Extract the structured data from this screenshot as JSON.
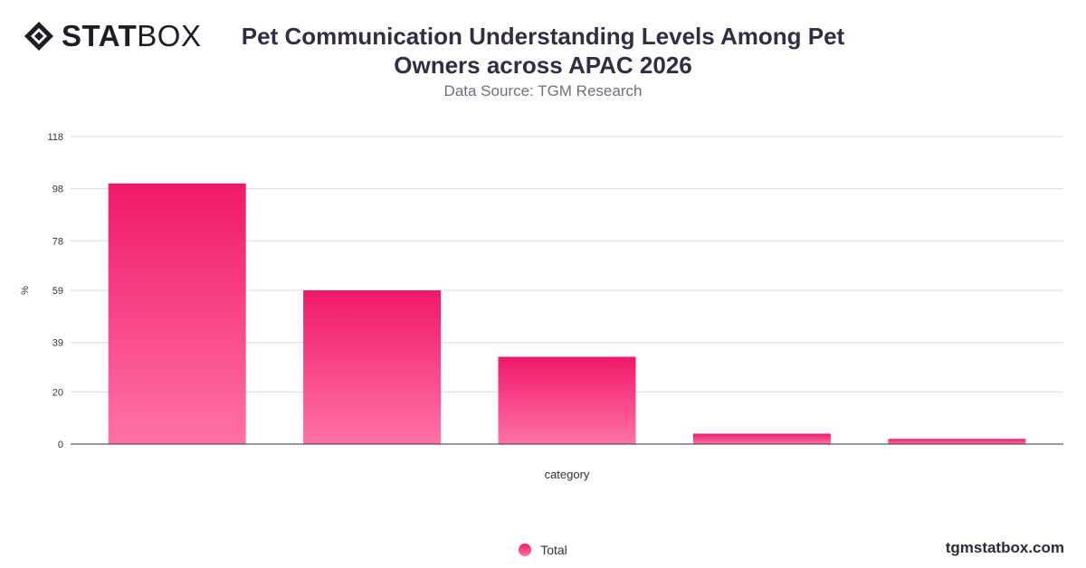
{
  "brand": {
    "logo_bold": "STAT",
    "logo_light": "BOX"
  },
  "header": {
    "title": "Pet Communication Understanding Levels Among Pet Owners across APAC 2026",
    "subtitle": "Data Source: TGM Research"
  },
  "footer": {
    "site": "tgmstatbox.com"
  },
  "legend": {
    "label": "Total"
  },
  "colors": {
    "bar_top": "#f0186a",
    "bar_bottom": "#ff72a6",
    "grid": "#dcdce0",
    "axis": "#333333"
  },
  "chart_data": {
    "type": "bar",
    "categories": [
      "",
      "",
      "",
      "",
      ""
    ],
    "series": [
      {
        "name": "Total",
        "values": [
          100,
          59,
          33.5,
          4,
          2
        ]
      }
    ],
    "xlabel": "category",
    "ylabel": "%",
    "ylim": [
      0,
      118
    ],
    "yticks": [
      0,
      20,
      39,
      59,
      78,
      98,
      118
    ],
    "grid": true,
    "legend_position": "bottom"
  }
}
